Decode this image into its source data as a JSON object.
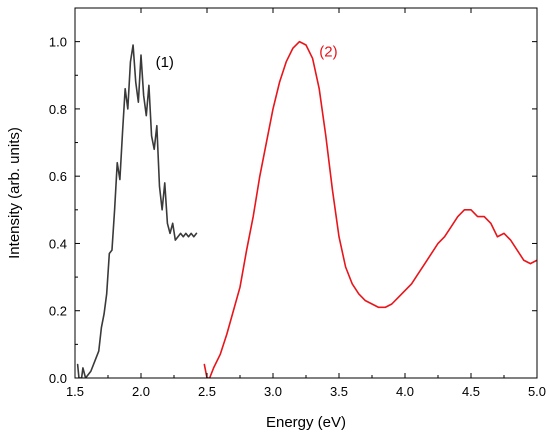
{
  "chart_data": {
    "type": "line",
    "xlabel": "Energy (eV)",
    "ylabel": "Intensity (arb. units)",
    "xlim": [
      1.5,
      5.0
    ],
    "ylim": [
      0.0,
      1.1
    ],
    "xticks": [
      "1.5",
      "2.0",
      "2.5",
      "3.0",
      "3.5",
      "4.0",
      "4.5",
      "5.0"
    ],
    "yticks": [
      "0.0",
      "0.2",
      "0.4",
      "0.6",
      "0.8",
      "1.0"
    ],
    "grid": false,
    "series": [
      {
        "name": "(1)",
        "color": "#3a3a3a",
        "points": [
          [
            1.52,
            0.04
          ],
          [
            1.53,
            0.0
          ],
          [
            1.55,
            0.0
          ],
          [
            1.56,
            0.03
          ],
          [
            1.58,
            0.0
          ],
          [
            1.6,
            0.01
          ],
          [
            1.62,
            0.02
          ],
          [
            1.65,
            0.05
          ],
          [
            1.68,
            0.08
          ],
          [
            1.7,
            0.15
          ],
          [
            1.72,
            0.19
          ],
          [
            1.74,
            0.25
          ],
          [
            1.76,
            0.37
          ],
          [
            1.78,
            0.38
          ],
          [
            1.8,
            0.5
          ],
          [
            1.82,
            0.64
          ],
          [
            1.84,
            0.59
          ],
          [
            1.86,
            0.73
          ],
          [
            1.88,
            0.86
          ],
          [
            1.9,
            0.8
          ],
          [
            1.92,
            0.94
          ],
          [
            1.94,
            0.99
          ],
          [
            1.96,
            0.88
          ],
          [
            1.98,
            0.82
          ],
          [
            2.0,
            0.96
          ],
          [
            2.02,
            0.84
          ],
          [
            2.04,
            0.78
          ],
          [
            2.06,
            0.87
          ],
          [
            2.08,
            0.72
          ],
          [
            2.1,
            0.68
          ],
          [
            2.12,
            0.75
          ],
          [
            2.14,
            0.57
          ],
          [
            2.16,
            0.5
          ],
          [
            2.18,
            0.58
          ],
          [
            2.2,
            0.46
          ],
          [
            2.22,
            0.43
          ],
          [
            2.24,
            0.46
          ],
          [
            2.26,
            0.41
          ],
          [
            2.28,
            0.42
          ],
          [
            2.3,
            0.43
          ],
          [
            2.32,
            0.42
          ],
          [
            2.34,
            0.43
          ],
          [
            2.36,
            0.42
          ],
          [
            2.38,
            0.43
          ],
          [
            2.4,
            0.42
          ],
          [
            2.42,
            0.43
          ]
        ]
      },
      {
        "name": "(2)",
        "color": "#e8151b",
        "points": [
          [
            2.48,
            0.04
          ],
          [
            2.5,
            0.0
          ],
          [
            2.52,
            0.0
          ],
          [
            2.55,
            0.03
          ],
          [
            2.6,
            0.07
          ],
          [
            2.65,
            0.13
          ],
          [
            2.7,
            0.2
          ],
          [
            2.75,
            0.27
          ],
          [
            2.8,
            0.38
          ],
          [
            2.85,
            0.48
          ],
          [
            2.9,
            0.6
          ],
          [
            2.95,
            0.7
          ],
          [
            3.0,
            0.8
          ],
          [
            3.05,
            0.88
          ],
          [
            3.1,
            0.94
          ],
          [
            3.15,
            0.98
          ],
          [
            3.2,
            1.0
          ],
          [
            3.25,
            0.99
          ],
          [
            3.3,
            0.95
          ],
          [
            3.35,
            0.86
          ],
          [
            3.4,
            0.72
          ],
          [
            3.45,
            0.56
          ],
          [
            3.5,
            0.42
          ],
          [
            3.55,
            0.33
          ],
          [
            3.6,
            0.28
          ],
          [
            3.65,
            0.25
          ],
          [
            3.7,
            0.23
          ],
          [
            3.75,
            0.22
          ],
          [
            3.8,
            0.21
          ],
          [
            3.85,
            0.21
          ],
          [
            3.9,
            0.22
          ],
          [
            3.95,
            0.24
          ],
          [
            4.0,
            0.26
          ],
          [
            4.05,
            0.28
          ],
          [
            4.1,
            0.31
          ],
          [
            4.15,
            0.34
          ],
          [
            4.2,
            0.37
          ],
          [
            4.25,
            0.4
          ],
          [
            4.3,
            0.42
          ],
          [
            4.35,
            0.45
          ],
          [
            4.4,
            0.48
          ],
          [
            4.45,
            0.5
          ],
          [
            4.5,
            0.5
          ],
          [
            4.55,
            0.48
          ],
          [
            4.6,
            0.48
          ],
          [
            4.65,
            0.46
          ],
          [
            4.7,
            0.42
          ],
          [
            4.75,
            0.43
          ],
          [
            4.8,
            0.41
          ],
          [
            4.85,
            0.38
          ],
          [
            4.9,
            0.35
          ],
          [
            4.95,
            0.34
          ],
          [
            5.0,
            0.35
          ]
        ]
      }
    ],
    "annotations": [
      {
        "text": "(1)",
        "x": 2.18,
        "y": 0.94,
        "color": "#000000"
      },
      {
        "text": "(2)",
        "x": 3.42,
        "y": 0.97,
        "color": "#e8151b"
      }
    ]
  }
}
